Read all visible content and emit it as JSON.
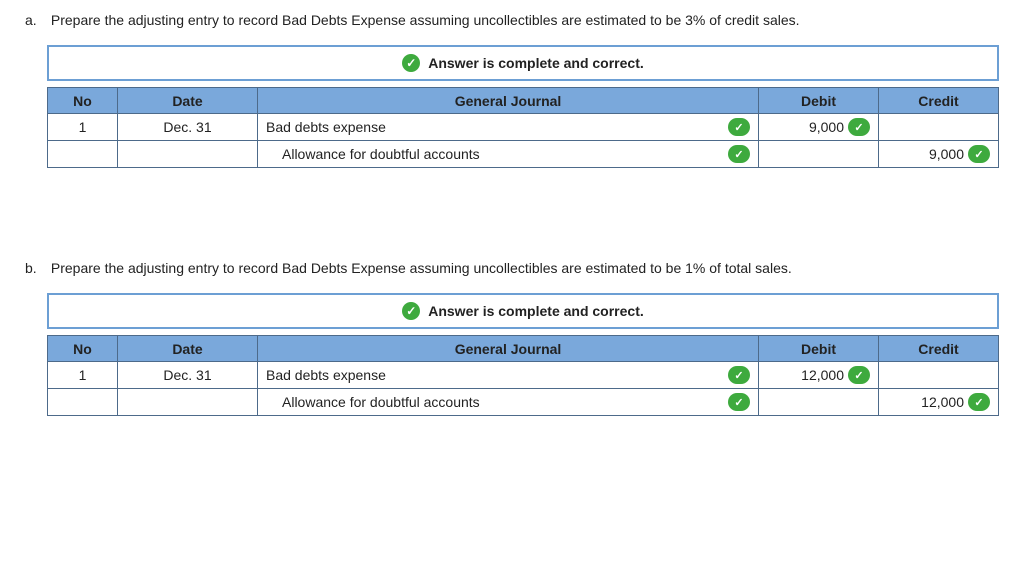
{
  "status_message": "Answer is complete and correct.",
  "checkmark": "✓",
  "headers": {
    "no": "No",
    "date": "Date",
    "gj": "General Journal",
    "debit": "Debit",
    "credit": "Credit"
  },
  "a": {
    "marker": "a.",
    "text": "Prepare the adjusting entry to record Bad Debts Expense assuming uncollectibles are estimated to be 3% of credit sales.",
    "rows": [
      {
        "no": "1",
        "date": "Dec. 31",
        "account": "Bad debts expense",
        "indent": false,
        "debit": "9,000",
        "credit": ""
      },
      {
        "no": "",
        "date": "",
        "account": "Allowance for doubtful accounts",
        "indent": true,
        "debit": "",
        "credit": "9,000"
      }
    ]
  },
  "b": {
    "marker": "b.",
    "text": "Prepare the adjusting entry to record Bad Debts Expense assuming uncollectibles are estimated to be 1% of total sales.",
    "rows": [
      {
        "no": "1",
        "date": "Dec. 31",
        "account": "Bad debts expense",
        "indent": false,
        "debit": "12,000",
        "credit": ""
      },
      {
        "no": "",
        "date": "",
        "account": "Allowance for doubtful accounts",
        "indent": true,
        "debit": "",
        "credit": "12,000"
      }
    ]
  }
}
